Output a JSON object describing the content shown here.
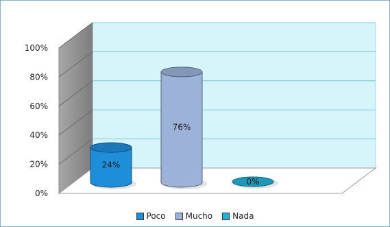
{
  "chart_data": {
    "type": "bar",
    "style": "3d-cylinder",
    "categories": [
      "Poco",
      "Mucho",
      "Nada"
    ],
    "values": [
      24,
      76,
      0
    ],
    "data_labels": [
      "24%",
      "76%",
      "0%"
    ],
    "colors": [
      "#1f8ed8",
      "#9db2d8",
      "#22b3d8"
    ],
    "wall_color": "#d5f5fb",
    "floor_color": "#ffffff",
    "ylim": [
      0,
      100
    ],
    "y_ticks": [
      "0%",
      "20%",
      "40%",
      "60%",
      "80%",
      "100%"
    ],
    "grid": true,
    "legend_position": "bottom",
    "legend": [
      "Poco",
      "Mucho",
      "Nada"
    ]
  }
}
